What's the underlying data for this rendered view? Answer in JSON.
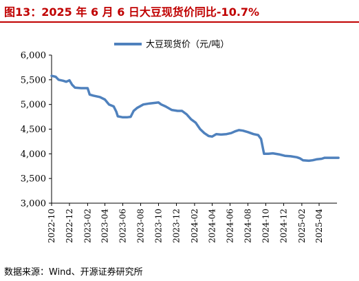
{
  "header": {
    "title": "图13：2025 年 6 月 6 日大豆现货价同比-10.7%"
  },
  "footer": {
    "source": "数据来源：Wind、开源证券研究所"
  },
  "colors": {
    "title": "#c00000",
    "series": "#4f81bd"
  },
  "chart_data": {
    "type": "line",
    "title": "",
    "xlabel": "",
    "ylabel": "",
    "ylim": [
      3000,
      6000
    ],
    "yticks": [
      3000,
      3500,
      4000,
      4500,
      5000,
      5500,
      6000
    ],
    "ytick_labels": [
      "3,000",
      "3,500",
      "4,000",
      "4,500",
      "5,000",
      "5,500",
      "6,000"
    ],
    "xlim": [
      "2022-10",
      "2025-06"
    ],
    "xticks": [
      "2022-10",
      "2022-12",
      "2023-02",
      "2023-04",
      "2023-06",
      "2023-08",
      "2023-10",
      "2023-12",
      "2024-02",
      "2024-04",
      "2024-06",
      "2024-08",
      "2024-10",
      "2024-12",
      "2025-02",
      "2025-04"
    ],
    "legend_position": "top",
    "grid": false,
    "series": [
      {
        "name": "大豆现货价（元/吨）",
        "color": "#4f81bd",
        "points": [
          [
            "2022-10-01",
            5580
          ],
          [
            "2022-10-15",
            5560
          ],
          [
            "2022-10-25",
            5500
          ],
          [
            "2022-11-10",
            5480
          ],
          [
            "2022-11-20",
            5460
          ],
          [
            "2022-12-01",
            5490
          ],
          [
            "2022-12-10",
            5400
          ],
          [
            "2022-12-20",
            5340
          ],
          [
            "2023-01-10",
            5330
          ],
          [
            "2023-02-01",
            5330
          ],
          [
            "2023-02-08",
            5200
          ],
          [
            "2023-02-20",
            5180
          ],
          [
            "2023-03-15",
            5150
          ],
          [
            "2023-04-01",
            5100
          ],
          [
            "2023-04-15",
            5000
          ],
          [
            "2023-05-01",
            4960
          ],
          [
            "2023-05-10",
            4850
          ],
          [
            "2023-05-15",
            4760
          ],
          [
            "2023-06-01",
            4740
          ],
          [
            "2023-06-15",
            4740
          ],
          [
            "2023-06-28",
            4750
          ],
          [
            "2023-07-08",
            4870
          ],
          [
            "2023-07-20",
            4930
          ],
          [
            "2023-08-10",
            5000
          ],
          [
            "2023-09-01",
            5020
          ],
          [
            "2023-10-01",
            5040
          ],
          [
            "2023-10-10",
            5000
          ],
          [
            "2023-10-25",
            4960
          ],
          [
            "2023-11-15",
            4890
          ],
          [
            "2023-12-05",
            4870
          ],
          [
            "2023-12-20",
            4870
          ],
          [
            "2024-01-05",
            4800
          ],
          [
            "2024-01-20",
            4700
          ],
          [
            "2024-02-05",
            4630
          ],
          [
            "2024-02-20",
            4500
          ],
          [
            "2024-03-05",
            4420
          ],
          [
            "2024-03-20",
            4360
          ],
          [
            "2024-04-01",
            4350
          ],
          [
            "2024-04-15",
            4400
          ],
          [
            "2024-05-01",
            4390
          ],
          [
            "2024-05-20",
            4400
          ],
          [
            "2024-06-05",
            4420
          ],
          [
            "2024-06-20",
            4460
          ],
          [
            "2024-07-01",
            4480
          ],
          [
            "2024-07-15",
            4470
          ],
          [
            "2024-08-01",
            4440
          ],
          [
            "2024-08-20",
            4400
          ],
          [
            "2024-09-05",
            4380
          ],
          [
            "2024-09-15",
            4300
          ],
          [
            "2024-09-25",
            4000
          ],
          [
            "2024-10-10",
            4000
          ],
          [
            "2024-10-25",
            4010
          ],
          [
            "2024-11-15",
            3990
          ],
          [
            "2024-12-05",
            3960
          ],
          [
            "2024-12-25",
            3950
          ],
          [
            "2025-01-15",
            3930
          ],
          [
            "2025-01-25",
            3910
          ],
          [
            "2025-02-05",
            3870
          ],
          [
            "2025-02-25",
            3860
          ],
          [
            "2025-03-10",
            3870
          ],
          [
            "2025-03-25",
            3890
          ],
          [
            "2025-04-10",
            3900
          ],
          [
            "2025-04-20",
            3920
          ],
          [
            "2025-06-06",
            3920
          ]
        ]
      }
    ]
  }
}
